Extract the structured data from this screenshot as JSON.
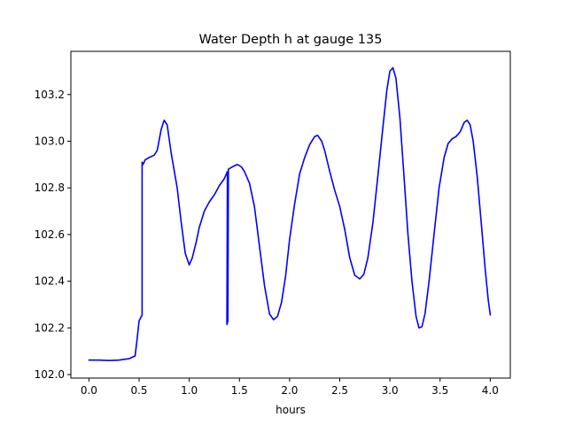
{
  "chart_data": {
    "type": "line",
    "title": "Water Depth h at gauge 135",
    "xlabel": "hours",
    "ylabel": "",
    "xlim": [
      -0.18,
      4.2
    ],
    "ylim": [
      101.985,
      103.385
    ],
    "xticks": [
      0.0,
      0.5,
      1.0,
      1.5,
      2.0,
      2.5,
      3.0,
      3.5,
      4.0
    ],
    "xtick_labels": [
      "0.0",
      "0.5",
      "1.0",
      "1.5",
      "2.0",
      "2.5",
      "3.0",
      "3.5",
      "4.0"
    ],
    "yticks": [
      102.0,
      102.2,
      102.4,
      102.6,
      102.8,
      103.0,
      103.2
    ],
    "ytick_labels": [
      "102.0",
      "102.2",
      "102.4",
      "102.6",
      "102.8",
      "103.0",
      "103.2"
    ],
    "grid": false,
    "legend": "none",
    "series": [
      {
        "color": "#0000ff",
        "points": [
          [
            0.0,
            102.062
          ],
          [
            0.1,
            102.062
          ],
          [
            0.2,
            102.06
          ],
          [
            0.3,
            102.062
          ],
          [
            0.4,
            102.068
          ],
          [
            0.46,
            102.08
          ],
          [
            0.48,
            102.15
          ],
          [
            0.5,
            102.23
          ],
          [
            0.53,
            102.255
          ],
          [
            0.53,
            102.91
          ],
          [
            0.54,
            102.9
          ],
          [
            0.56,
            102.92
          ],
          [
            0.6,
            102.93
          ],
          [
            0.65,
            102.94
          ],
          [
            0.68,
            102.96
          ],
          [
            0.72,
            103.05
          ],
          [
            0.75,
            103.09
          ],
          [
            0.78,
            103.07
          ],
          [
            0.82,
            102.95
          ],
          [
            0.88,
            102.8
          ],
          [
            0.92,
            102.65
          ],
          [
            0.96,
            102.52
          ],
          [
            1.0,
            102.47
          ],
          [
            1.03,
            102.5
          ],
          [
            1.07,
            102.57
          ],
          [
            1.1,
            102.63
          ],
          [
            1.15,
            102.7
          ],
          [
            1.2,
            102.74
          ],
          [
            1.25,
            102.77
          ],
          [
            1.3,
            102.81
          ],
          [
            1.35,
            102.84
          ],
          [
            1.38,
            102.87
          ],
          [
            1.375,
            102.215
          ],
          [
            1.385,
            102.23
          ],
          [
            1.39,
            102.88
          ],
          [
            1.45,
            102.895
          ],
          [
            1.48,
            102.9
          ],
          [
            1.52,
            102.89
          ],
          [
            1.55,
            102.87
          ],
          [
            1.6,
            102.82
          ],
          [
            1.65,
            102.72
          ],
          [
            1.7,
            102.55
          ],
          [
            1.75,
            102.38
          ],
          [
            1.8,
            102.26
          ],
          [
            1.84,
            102.235
          ],
          [
            1.88,
            102.25
          ],
          [
            1.92,
            102.31
          ],
          [
            1.96,
            102.42
          ],
          [
            2.0,
            102.58
          ],
          [
            2.05,
            102.73
          ],
          [
            2.1,
            102.86
          ],
          [
            2.15,
            102.93
          ],
          [
            2.2,
            102.985
          ],
          [
            2.25,
            103.02
          ],
          [
            2.28,
            103.025
          ],
          [
            2.32,
            103.0
          ],
          [
            2.35,
            102.96
          ],
          [
            2.4,
            102.87
          ],
          [
            2.45,
            102.79
          ],
          [
            2.5,
            102.72
          ],
          [
            2.55,
            102.62
          ],
          [
            2.6,
            102.5
          ],
          [
            2.65,
            102.425
          ],
          [
            2.7,
            102.41
          ],
          [
            2.74,
            102.43
          ],
          [
            2.78,
            102.5
          ],
          [
            2.83,
            102.65
          ],
          [
            2.88,
            102.85
          ],
          [
            2.93,
            103.06
          ],
          [
            2.97,
            103.22
          ],
          [
            3.0,
            103.3
          ],
          [
            3.03,
            103.315
          ],
          [
            3.06,
            103.27
          ],
          [
            3.1,
            103.1
          ],
          [
            3.14,
            102.85
          ],
          [
            3.18,
            102.6
          ],
          [
            3.22,
            102.4
          ],
          [
            3.26,
            102.25
          ],
          [
            3.29,
            102.2
          ],
          [
            3.32,
            102.205
          ],
          [
            3.35,
            102.26
          ],
          [
            3.39,
            102.4
          ],
          [
            3.44,
            102.6
          ],
          [
            3.49,
            102.8
          ],
          [
            3.54,
            102.93
          ],
          [
            3.58,
            102.99
          ],
          [
            3.62,
            103.01
          ],
          [
            3.66,
            103.02
          ],
          [
            3.7,
            103.04
          ],
          [
            3.74,
            103.08
          ],
          [
            3.77,
            103.09
          ],
          [
            3.8,
            103.07
          ],
          [
            3.83,
            103.0
          ],
          [
            3.87,
            102.85
          ],
          [
            3.91,
            102.65
          ],
          [
            3.95,
            102.45
          ],
          [
            3.98,
            102.32
          ],
          [
            4.0,
            102.255
          ]
        ]
      }
    ]
  }
}
